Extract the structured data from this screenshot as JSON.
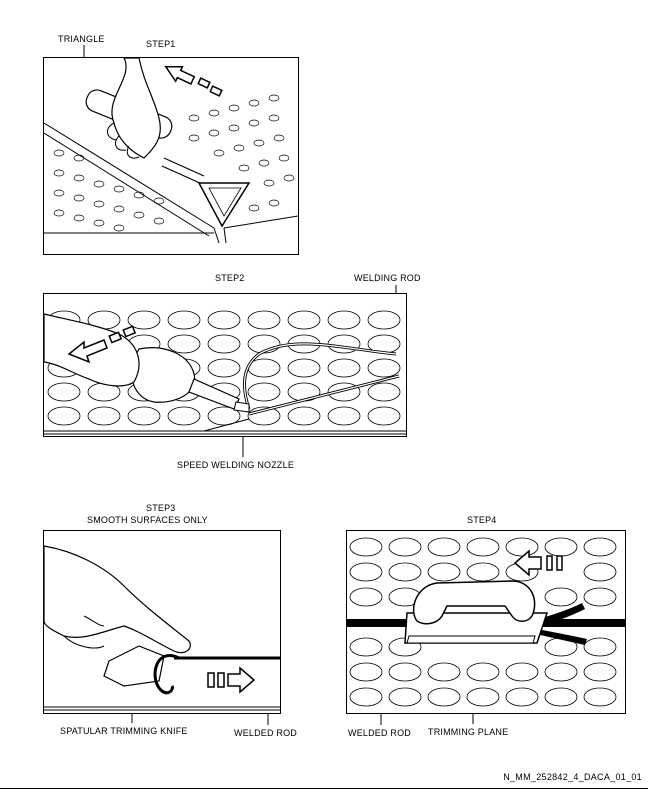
{
  "step1": {
    "title": "STEP1",
    "callout": "TRIANGLE"
  },
  "step2": {
    "title": "STEP2",
    "callout_rod": "WELDING ROD",
    "callout_nozzle": "SPEED WELDING NOZZLE"
  },
  "step3": {
    "title": "STEP3",
    "subtitle": "SMOOTH SURFACES ONLY",
    "callout_knife": "SPATULAR TRIMMING KNIFE",
    "callout_rod": "WELDED ROD"
  },
  "step4": {
    "title": "STEP4",
    "callout_rod": "WELDED ROD",
    "callout_plane": "TRIMMING PLANE"
  },
  "document_id": "N_MM_252842_4_DACA_01_01"
}
